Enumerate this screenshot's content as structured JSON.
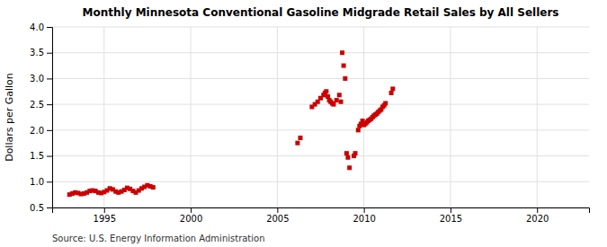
{
  "chart_data": {
    "type": "scatter",
    "title": "Monthly Minnesota Conventional Gasoline Midgrade Retail Sales by All Sellers",
    "ylabel": "Dollars per Gallon",
    "source": "Source: U.S. Energy Information Administration",
    "color": "#cc0000",
    "marker": "square",
    "grid": true,
    "xlim": [
      1992,
      2023
    ],
    "ylim": [
      0.5,
      4.0
    ],
    "xticks": [
      1995,
      2000,
      2005,
      2010,
      2015,
      2020
    ],
    "yticks": [
      0.5,
      {
        "value": 1.0,
        "label": "1.0"
      },
      1.5,
      {
        "value": 2.0,
        "label": "2.0"
      },
      2.5,
      {
        "value": 3.0,
        "label": "3.0"
      },
      3.5,
      {
        "value": 4.0,
        "label": "4.0"
      }
    ],
    "x": [
      1993.0,
      1993.17,
      1993.33,
      1993.5,
      1993.67,
      1993.83,
      1994.0,
      1994.17,
      1994.33,
      1994.5,
      1994.67,
      1994.83,
      1995.0,
      1995.17,
      1995.33,
      1995.5,
      1995.67,
      1995.83,
      1996.0,
      1996.17,
      1996.33,
      1996.5,
      1996.67,
      1996.83,
      1997.0,
      1997.17,
      1997.33,
      1997.5,
      1997.67,
      1997.83,
      2006.17,
      2006.33,
      2007.0,
      2007.17,
      2007.33,
      2007.5,
      2007.67,
      2007.75,
      2007.83,
      2007.92,
      2008.0,
      2008.08,
      2008.17,
      2008.25,
      2008.42,
      2008.58,
      2008.67,
      2008.75,
      2008.83,
      2008.92,
      2009.0,
      2009.08,
      2009.17,
      2009.42,
      2009.5,
      2009.67,
      2009.75,
      2009.83,
      2009.92,
      2010.0,
      2010.08,
      2010.17,
      2010.25,
      2010.33,
      2010.42,
      2010.5,
      2010.58,
      2010.67,
      2010.75,
      2010.83,
      2010.92,
      2011.0,
      2011.08,
      2011.17,
      2011.25,
      2011.58,
      2011.67
    ],
    "values": [
      0.75,
      0.77,
      0.79,
      0.78,
      0.76,
      0.77,
      0.79,
      0.82,
      0.83,
      0.82,
      0.79,
      0.78,
      0.8,
      0.83,
      0.87,
      0.85,
      0.81,
      0.79,
      0.81,
      0.84,
      0.88,
      0.86,
      0.82,
      0.79,
      0.83,
      0.87,
      0.9,
      0.93,
      0.91,
      0.89,
      1.75,
      1.85,
      2.45,
      2.5,
      2.55,
      2.62,
      2.68,
      2.72,
      2.75,
      2.65,
      2.58,
      2.55,
      2.52,
      2.5,
      2.58,
      2.68,
      2.55,
      3.5,
      3.25,
      3.0,
      1.55,
      1.47,
      1.27,
      1.5,
      1.55,
      2.0,
      2.08,
      2.12,
      2.18,
      2.1,
      2.12,
      2.15,
      2.18,
      2.2,
      2.22,
      2.25,
      2.28,
      2.3,
      2.32,
      2.35,
      2.38,
      2.4,
      2.45,
      2.48,
      2.52,
      2.72,
      2.8
    ]
  }
}
